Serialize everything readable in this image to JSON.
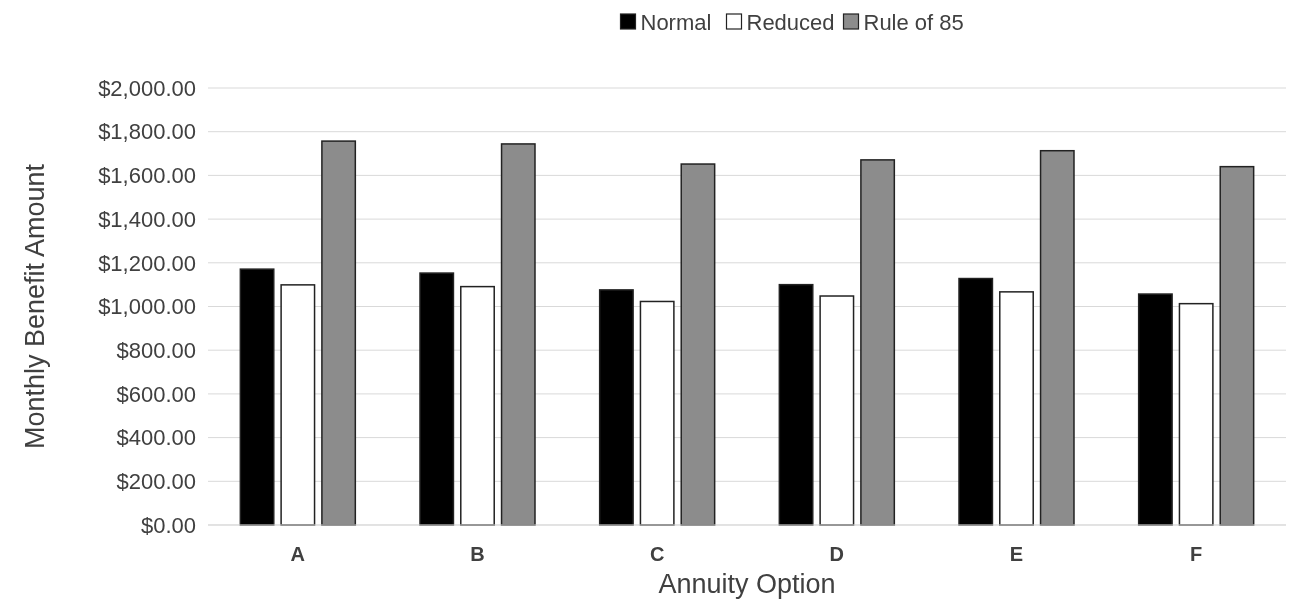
{
  "chart_data": {
    "type": "bar",
    "xlabel": "Annuity Option",
    "ylabel": "Monthly Benefit  Amount",
    "categories": [
      "A",
      "B",
      "C",
      "D",
      "E",
      "F"
    ],
    "series": [
      {
        "name": "Normal",
        "color": "#000000",
        "values": [
          1171,
          1153,
          1076,
          1100,
          1128,
          1057
        ]
      },
      {
        "name": "Reduced",
        "color": "#ffffff",
        "values": [
          1099,
          1091,
          1023,
          1048,
          1067,
          1013
        ]
      },
      {
        "name": "Rule of 85",
        "color": "#8c8c8c",
        "values": [
          1757,
          1744,
          1652,
          1671,
          1713,
          1640
        ]
      }
    ],
    "ylim": [
      0,
      2000
    ],
    "yticks": [
      {
        "value": 0,
        "label": "$0.00"
      },
      {
        "value": 200,
        "label": "$200.00"
      },
      {
        "value": 400,
        "label": "$400.00"
      },
      {
        "value": 600,
        "label": "$600.00"
      },
      {
        "value": 800,
        "label": "$800.00"
      },
      {
        "value": 1000,
        "label": "$1,000.00"
      },
      {
        "value": 1200,
        "label": "$1,200.00"
      },
      {
        "value": 1400,
        "label": "$1,400.00"
      },
      {
        "value": 1600,
        "label": "$1,600.00"
      },
      {
        "value": 1800,
        "label": "$1,800.00"
      },
      {
        "value": 2000,
        "label": "$2,000.00"
      }
    ],
    "grid": "y",
    "legend": "top"
  }
}
